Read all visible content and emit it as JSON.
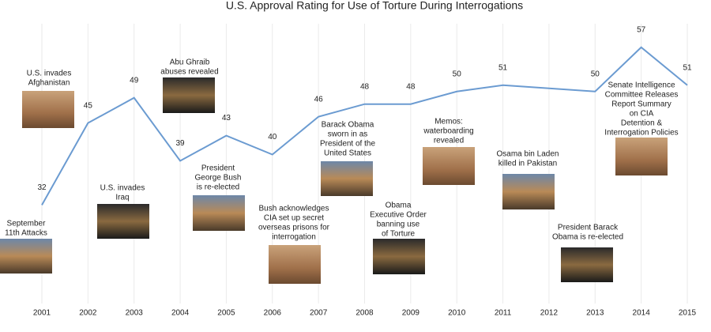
{
  "chart_data": {
    "type": "line",
    "title": "U.S. Approval Rating for Use of Torture During Interrogations",
    "x": [
      2001,
      2002,
      2003,
      2004,
      2005,
      2006,
      2007,
      2008,
      2009,
      2010,
      2011,
      2013,
      2014,
      2015
    ],
    "values": [
      32,
      45,
      49,
      39,
      43,
      40,
      46,
      48,
      48,
      50,
      51,
      50,
      57,
      51
    ],
    "color": "#6b9bd1",
    "xlim": [
      2001,
      2015
    ],
    "xticks": [
      2001,
      2002,
      2003,
      2004,
      2005,
      2006,
      2007,
      2008,
      2009,
      2010,
      2011,
      2012,
      2013,
      2014,
      2015
    ],
    "ylim": [
      15,
      62
    ],
    "grid": true,
    "annotations": [
      {
        "lines": [
          "September",
          "11th Attacks"
        ]
      },
      {
        "lines": [
          "U.S. invades",
          "Afghanistan"
        ]
      },
      {
        "lines": [
          "U.S. invades",
          "Iraq"
        ]
      },
      {
        "lines": [
          "Abu Ghraib",
          "abuses revealed"
        ]
      },
      {
        "lines": [
          "President",
          "George Bush",
          "is re-elected"
        ]
      },
      {
        "lines": [
          "Bush acknowledges",
          "CIA set up secret",
          "overseas prisons for",
          "interrogation"
        ]
      },
      {
        "lines": [
          "Barack Obama",
          "sworn in as",
          "President of the",
          "United States"
        ]
      },
      {
        "lines": [
          "Obama",
          "Executive Order",
          "banning use",
          "of Torture"
        ]
      },
      {
        "lines": [
          "Memos:",
          "waterboarding",
          "revealed"
        ]
      },
      {
        "lines": [
          "Osama bin Laden",
          "killed in Pakistan"
        ]
      },
      {
        "lines": [
          "President Barack",
          "Obama is re-elected"
        ]
      },
      {
        "lines": [
          "Senate Intelligence",
          "Committee Releases",
          "Report Summary",
          "on CIA",
          "Detention &",
          "Interrogation Policies"
        ]
      }
    ]
  }
}
